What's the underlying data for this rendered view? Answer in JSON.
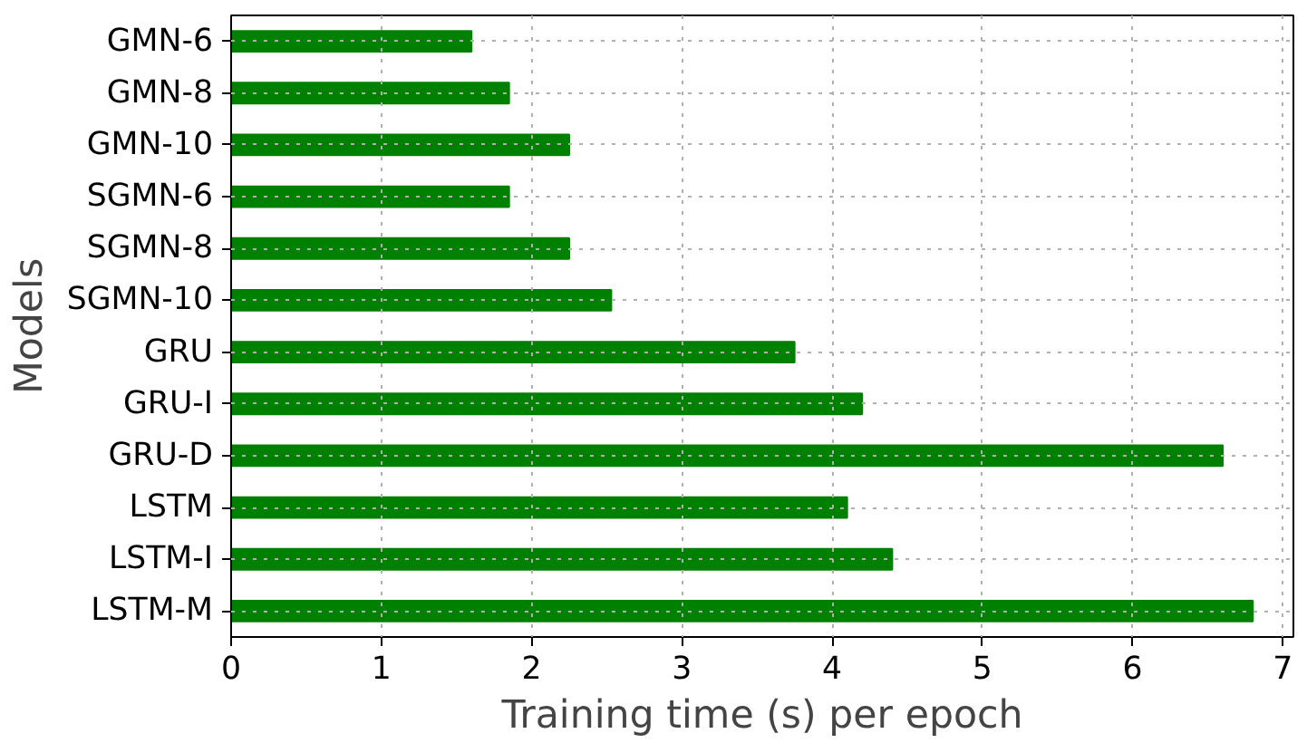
{
  "chart_data": {
    "type": "bar",
    "orientation": "horizontal",
    "xlabel": "Training time (s) per epoch",
    "ylabel": "Models",
    "categories": [
      "GMN-6",
      "GMN-8",
      "GMN-10",
      "SGMN-6",
      "SGMN-8",
      "SGMN-10",
      "GRU",
      "GRU-I",
      "GRU-D",
      "LSTM",
      "LSTM-I",
      "LSTM-M"
    ],
    "values": [
      1.6,
      1.85,
      2.25,
      1.85,
      2.25,
      2.53,
      3.75,
      4.2,
      6.6,
      4.1,
      4.4,
      6.8
    ],
    "color": "#008000",
    "xlim": [
      0,
      7.07
    ],
    "xticks": [
      0,
      1,
      2,
      3,
      4,
      5,
      6,
      7
    ],
    "grid": true,
    "line_style": "dotted"
  }
}
